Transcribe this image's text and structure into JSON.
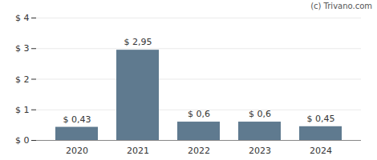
{
  "chart_data": {
    "type": "bar",
    "annotation": "(c) Trivano.com",
    "categories": [
      "2020",
      "2021",
      "2022",
      "2023",
      "2024"
    ],
    "values": [
      0.43,
      2.95,
      0.6,
      0.6,
      0.45
    ],
    "value_labels": [
      "$ 0,43",
      "$ 2,95",
      "$ 0,6",
      "$ 0,6",
      "$ 0,45"
    ],
    "data_labels": true,
    "color": "#5f7a8f",
    "ylim": [
      0,
      4
    ],
    "yticks": [
      {
        "value": 0,
        "label": "$ 0"
      },
      {
        "value": 1,
        "label": "$ 1"
      },
      {
        "value": 2,
        "label": "$ 2"
      },
      {
        "value": 3,
        "label": "$ 3"
      },
      {
        "value": 4,
        "label": "$ 4"
      }
    ],
    "grid": true
  }
}
